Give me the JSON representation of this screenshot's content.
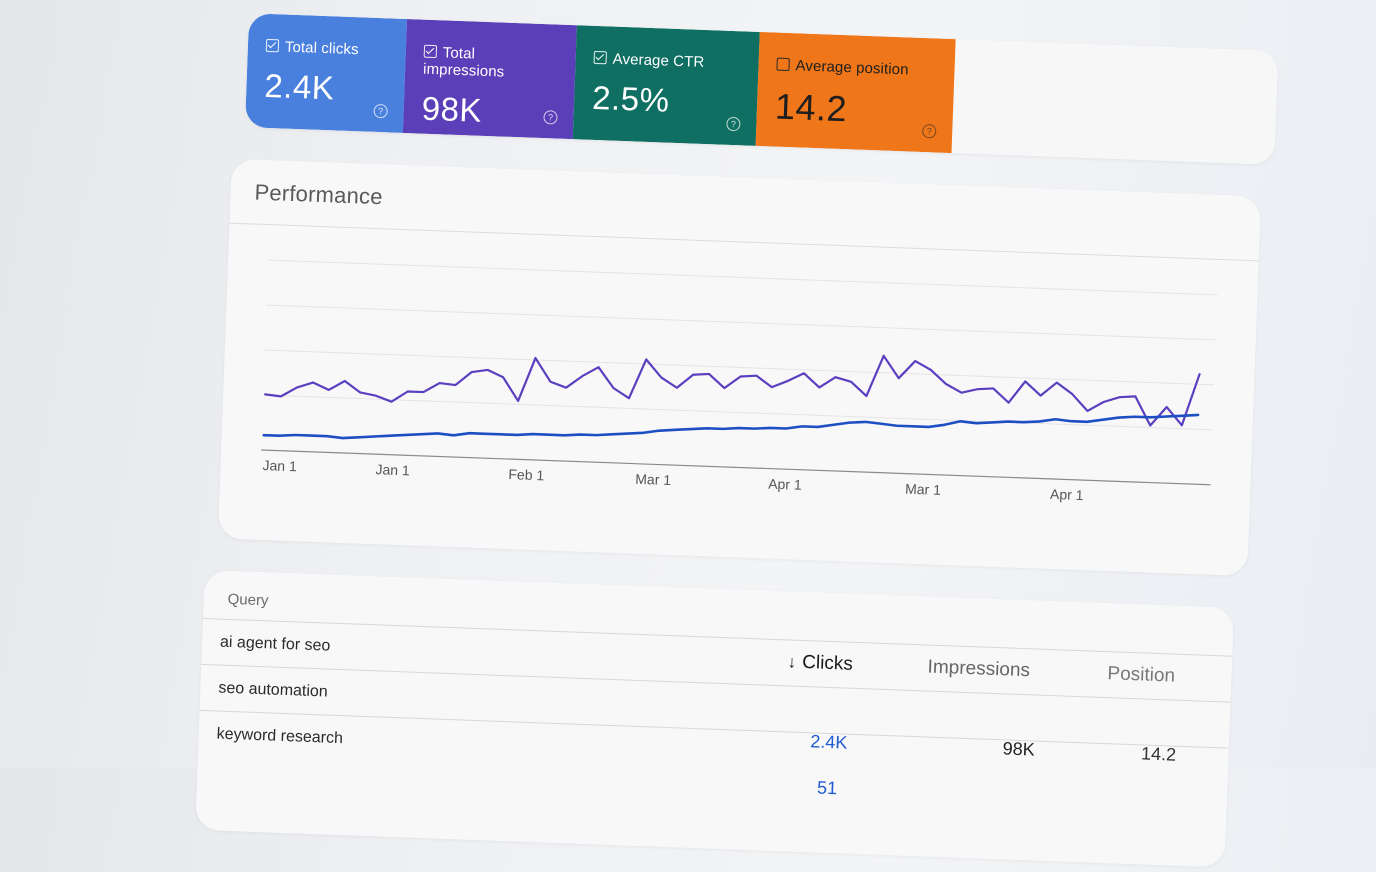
{
  "metrics": [
    {
      "label": "Total clicks",
      "value": "2.4K",
      "checked": true,
      "color": "#4a80dd"
    },
    {
      "label": "Total impressions",
      "value": "98K",
      "checked": true,
      "color": "#5a3fb8"
    },
    {
      "label": "Average CTR",
      "value": "2.5%",
      "checked": true,
      "color": "#0f6f62"
    },
    {
      "label": "Average position",
      "value": "14.2",
      "checked": false,
      "color": "#ef7619"
    }
  ],
  "performance": {
    "title": "Performance"
  },
  "chart_data": {
    "type": "line",
    "title": "Performance",
    "x_tick_labels": [
      "Jan 1",
      "Jan 1",
      "Feb 1",
      "Mar 1",
      "Apr 1",
      "Mar 1",
      "Apr 1"
    ],
    "grid": true,
    "series": [
      {
        "color": "#5b3fbf",
        "values": [
          38,
          37,
          44,
          48,
          43,
          50,
          42,
          40,
          36,
          44,
          44,
          51,
          50,
          60,
          62,
          57,
          40,
          72,
          55,
          51,
          60,
          67,
          52,
          45,
          74,
          61,
          54,
          64,
          65,
          55,
          64,
          65,
          57,
          62,
          68,
          58,
          66,
          63,
          53,
          83,
          67,
          80,
          74,
          64,
          58,
          61,
          62,
          52,
          68,
          58,
          68,
          60,
          48,
          55,
          59,
          60,
          39,
          53,
          40,
          78
        ],
        "end_value": 78
      },
      {
        "color": "#1d4ec2",
        "values": [
          8,
          8,
          9,
          9,
          9,
          8,
          9,
          10,
          11,
          12,
          13,
          14,
          13,
          15,
          15,
          15,
          15,
          16,
          16,
          16,
          17,
          17,
          18,
          19,
          20,
          22,
          23,
          24,
          25,
          25,
          26,
          26,
          27,
          27,
          29,
          29,
          31,
          33,
          34,
          33,
          32,
          32,
          32,
          34,
          37,
          36,
          37,
          38,
          38,
          39,
          41,
          40,
          40,
          42,
          44,
          45,
          45,
          46,
          47,
          48
        ]
      }
    ]
  },
  "table": {
    "query_header": "Query",
    "columns": {
      "clicks": "Clicks",
      "impressions": "Impressions",
      "position": "Position"
    },
    "rows": [
      {
        "query": "ai agent for seo"
      },
      {
        "query": "seo automation",
        "clicks": "2.4K",
        "impressions": "98K",
        "position": "14.2"
      },
      {
        "query": "keyword research",
        "clicks": "51"
      }
    ]
  }
}
